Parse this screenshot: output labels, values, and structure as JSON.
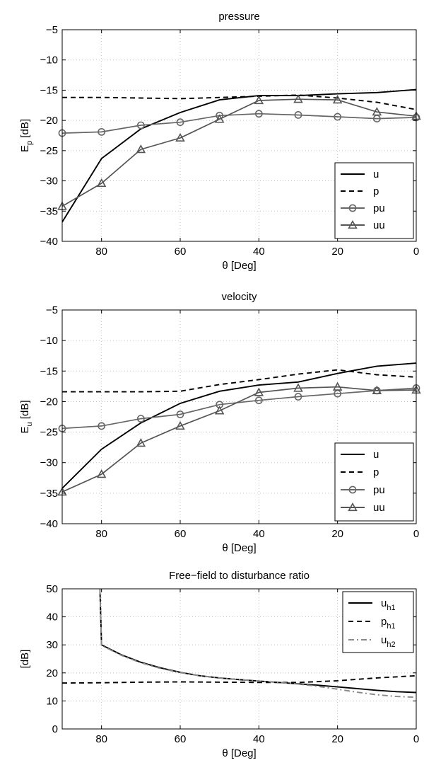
{
  "chart_data": [
    {
      "type": "line",
      "title": "pressure",
      "xlabel": "θ [Deg]",
      "ylabel_main": "E",
      "ylabel_sub": "p",
      "ylabel_rest": " [dB]",
      "xlim": [
        90,
        0
      ],
      "ylim": [
        -40,
        -5
      ],
      "xticks": [
        80,
        60,
        40,
        20,
        0
      ],
      "yticks": [
        -5,
        -10,
        -15,
        -20,
        -25,
        -30,
        -35,
        -40
      ],
      "grid": true,
      "legend_position": "bottom-right",
      "series": [
        {
          "name": "u",
          "style": "solid",
          "color": "#000000",
          "marker": "none",
          "x": [
            90,
            80,
            70,
            60,
            50,
            40,
            30,
            20,
            10,
            0
          ],
          "y": [
            -36.8,
            -26.3,
            -21.4,
            -18.7,
            -16.6,
            -15.9,
            -15.9,
            -15.6,
            -15.4,
            -14.9
          ]
        },
        {
          "name": "p",
          "style": "dashed",
          "color": "#000000",
          "marker": "none",
          "x": [
            90,
            80,
            70,
            60,
            50,
            40,
            30,
            20,
            10,
            0
          ],
          "y": [
            -16.2,
            -16.2,
            -16.3,
            -16.4,
            -16.2,
            -16.0,
            -15.8,
            -16.3,
            -17.0,
            -18.2
          ]
        },
        {
          "name": "pu",
          "style": "solid",
          "color": "#666666",
          "marker": "circle",
          "x": [
            90,
            80,
            70,
            60,
            50,
            40,
            30,
            20,
            10,
            0
          ],
          "y": [
            -22.1,
            -21.9,
            -20.8,
            -20.3,
            -19.2,
            -18.9,
            -19.1,
            -19.4,
            -19.7,
            -19.5
          ]
        },
        {
          "name": "uu",
          "style": "solid",
          "color": "#555555",
          "marker": "triangle",
          "x": [
            90,
            80,
            70,
            60,
            50,
            40,
            30,
            20,
            10,
            0
          ],
          "y": [
            -34.2,
            -30.4,
            -24.8,
            -22.9,
            -19.8,
            -16.7,
            -16.5,
            -16.6,
            -18.6,
            -19.3
          ]
        }
      ]
    },
    {
      "type": "line",
      "title": "velocity",
      "xlabel": "θ [Deg]",
      "ylabel_main": "E",
      "ylabel_sub": "u",
      "ylabel_rest": " [dB]",
      "xlim": [
        90,
        0
      ],
      "ylim": [
        -40,
        -5
      ],
      "xticks": [
        80,
        60,
        40,
        20,
        0
      ],
      "yticks": [
        -5,
        -10,
        -15,
        -20,
        -25,
        -30,
        -35,
        -40
      ],
      "grid": true,
      "legend_position": "bottom-right",
      "series": [
        {
          "name": "u",
          "style": "solid",
          "color": "#000000",
          "marker": "none",
          "x": [
            90,
            80,
            70,
            60,
            50,
            40,
            30,
            20,
            10,
            0
          ],
          "y": [
            -34.2,
            -27.8,
            -23.5,
            -20.3,
            -18.3,
            -17.3,
            -16.8,
            -15.4,
            -14.2,
            -13.7
          ]
        },
        {
          "name": "p",
          "style": "dashed",
          "color": "#000000",
          "marker": "none",
          "x": [
            90,
            80,
            70,
            60,
            50,
            40,
            30,
            20,
            10,
            0
          ],
          "y": [
            -18.4,
            -18.4,
            -18.4,
            -18.3,
            -17.2,
            -16.4,
            -15.5,
            -14.8,
            -15.6,
            -16.0
          ]
        },
        {
          "name": "pu",
          "style": "solid",
          "color": "#666666",
          "marker": "circle",
          "x": [
            90,
            80,
            70,
            60,
            50,
            40,
            30,
            20,
            10,
            0
          ],
          "y": [
            -24.4,
            -24.0,
            -22.8,
            -22.1,
            -20.5,
            -19.8,
            -19.2,
            -18.7,
            -18.2,
            -17.8
          ]
        },
        {
          "name": "uu",
          "style": "solid",
          "color": "#555555",
          "marker": "triangle",
          "x": [
            90,
            80,
            70,
            60,
            50,
            40,
            30,
            20,
            10,
            0
          ],
          "y": [
            -34.8,
            -31.9,
            -26.8,
            -24.0,
            -21.5,
            -18.5,
            -17.8,
            -17.6,
            -18.2,
            -18.1
          ]
        }
      ]
    },
    {
      "type": "line",
      "title": "Free−field to disturbance ratio",
      "xlabel": "θ [Deg]",
      "ylabel_main": "[dB]",
      "ylabel_sub": "",
      "ylabel_rest": "",
      "xlim": [
        90,
        0
      ],
      "ylim": [
        0,
        50
      ],
      "xticks": [
        80,
        60,
        40,
        20,
        0
      ],
      "yticks": [
        50,
        40,
        30,
        20,
        10,
        0
      ],
      "grid": true,
      "legend_position": "top-right",
      "series": [
        {
          "name": "u",
          "name_sub": "h1",
          "style": "solid",
          "color": "#000000",
          "marker": "none",
          "x": [
            80.4,
            80,
            75,
            70,
            65,
            60,
            55,
            50,
            45,
            40,
            35,
            30,
            25,
            20,
            15,
            10,
            5,
            0
          ],
          "y": [
            50,
            30,
            26.5,
            23.8,
            21.8,
            20.2,
            19.0,
            18.2,
            17.6,
            17.1,
            16.6,
            16.1,
            15.6,
            15.0,
            14.4,
            13.8,
            13.3,
            13.0
          ]
        },
        {
          "name": "p",
          "name_sub": "h1",
          "style": "dashed",
          "color": "#000000",
          "marker": "none",
          "x": [
            90,
            80,
            70,
            60,
            50,
            40,
            30,
            20,
            10,
            0
          ],
          "y": [
            16.4,
            16.5,
            16.7,
            16.8,
            16.7,
            16.6,
            16.6,
            17.2,
            18.2,
            19.0
          ]
        },
        {
          "name": "u",
          "name_sub": "h2",
          "style": "dashdot",
          "color": "#888888",
          "marker": "none",
          "x": [
            80.4,
            80,
            75,
            70,
            65,
            60,
            55,
            50,
            45,
            40,
            35,
            30,
            25,
            20,
            15,
            10,
            5,
            0
          ],
          "y": [
            50,
            29.8,
            26.3,
            23.6,
            21.6,
            20.1,
            19.0,
            18.2,
            17.6,
            17.1,
            16.6,
            16.0,
            15.2,
            14.2,
            13.1,
            12.2,
            11.6,
            11.3
          ]
        }
      ]
    }
  ]
}
